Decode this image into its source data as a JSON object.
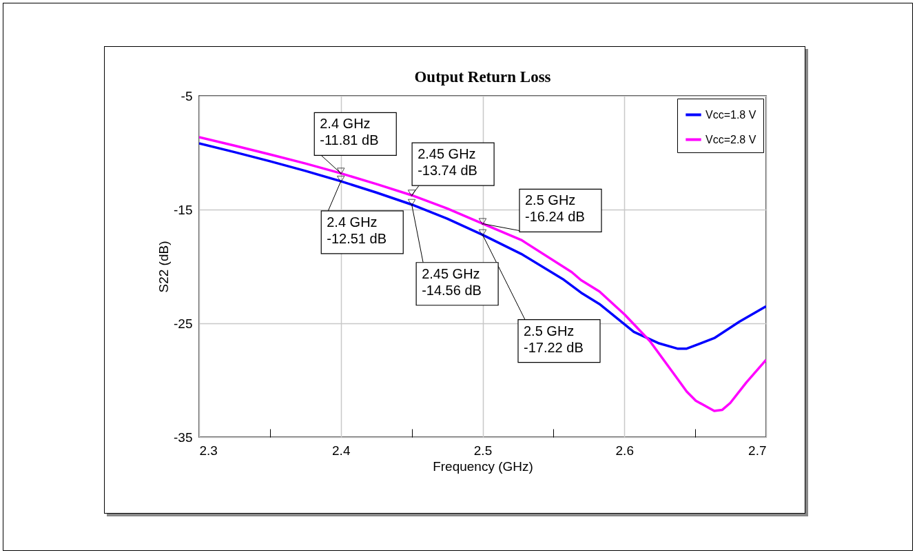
{
  "chart_data": {
    "type": "line",
    "title": "Output Return Loss",
    "xlabel": "Frequency (GHz)",
    "ylabel": "S22 (dB)",
    "xlim": [
      2.3,
      2.7
    ],
    "ylim": [
      -35,
      -5
    ],
    "xticks": [
      2.3,
      {
        "value": 2.35,
        "label": null
      },
      2.4,
      {
        "value": 2.45,
        "label": null
      },
      2.5,
      {
        "value": 2.55,
        "label": null
      },
      2.6,
      {
        "value": 2.65,
        "label": null
      },
      2.7
    ],
    "yticks": [
      -35,
      -25,
      -15,
      -5
    ],
    "grid": true,
    "legend": "top right",
    "line_style": "solid",
    "marker": "none",
    "series": [
      {
        "name": "Vcc=1.8 V",
        "color": "#0000ff",
        "x": [
          2.3,
          2.325,
          2.35,
          2.375,
          2.4,
          2.425,
          2.45,
          2.475,
          2.5,
          2.5273,
          2.5565,
          2.5694,
          2.5824,
          2.6067,
          2.6245,
          2.6374,
          2.644,
          2.6634,
          2.6812,
          2.7
        ],
        "values": [
          -9.18,
          -9.95,
          -10.75,
          -11.6,
          -12.51,
          -13.5,
          -14.56,
          -15.8,
          -17.22,
          -18.9,
          -21.1,
          -22.3,
          -23.3,
          -25.75,
          -26.76,
          -27.22,
          -27.22,
          -26.3,
          -24.85,
          -23.5
        ]
      },
      {
        "name": "Vcc=2.8 V",
        "color": "#ff00ff",
        "x": [
          2.3,
          2.325,
          2.35,
          2.375,
          2.4,
          2.425,
          2.45,
          2.475,
          2.5,
          2.5273,
          2.5629,
          2.5694,
          2.5824,
          2.6002,
          2.618,
          2.6358,
          2.644,
          2.6504,
          2.6634,
          2.6691,
          2.6747,
          2.686,
          2.7
        ],
        "values": [
          -8.64,
          -9.38,
          -10.15,
          -10.95,
          -11.81,
          -12.75,
          -13.74,
          -14.9,
          -16.24,
          -17.67,
          -20.5,
          -21.2,
          -22.2,
          -24.23,
          -26.56,
          -29.59,
          -31.0,
          -31.8,
          -32.7,
          -32.6,
          -32.0,
          -30.2,
          -28.2
        ]
      }
    ],
    "annotations": [
      {
        "text": "2.4 GHz\n-11.81 dB",
        "x": 2.4,
        "y": -11.81
      },
      {
        "text": "2.45 GHz\n-13.74 dB",
        "x": 2.45,
        "y": -13.74
      },
      {
        "text": "2.5 GHz\n-16.24 dB",
        "x": 2.5,
        "y": -16.24
      },
      {
        "text": "2.4 GHz\n-12.51 dB",
        "x": 2.4,
        "y": -12.51
      },
      {
        "text": "2.45 GHz\n-14.56 dB",
        "x": 2.45,
        "y": -14.56
      },
      {
        "text": "2.5 GHz\n-17.22 dB",
        "x": 2.5,
        "y": -17.22
      }
    ]
  }
}
